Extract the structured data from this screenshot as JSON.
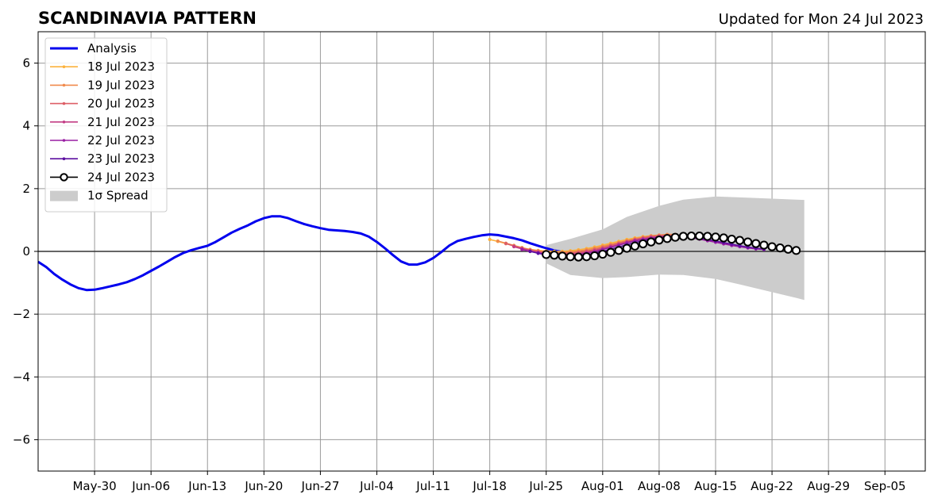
{
  "chart_data": {
    "type": "line",
    "title": "SCANDINAVIA PATTERN",
    "subtitle": "Updated for Mon 24 Jul 2023",
    "xlabel": "",
    "ylabel": "",
    "xlim": [
      "2023-05-23",
      "2023-09-10"
    ],
    "ylim": [
      -7,
      7
    ],
    "x_ticks": [
      {
        "date": "2023-05-30",
        "label": "May-30"
      },
      {
        "date": "2023-06-06",
        "label": "Jun-06"
      },
      {
        "date": "2023-06-13",
        "label": "Jun-13"
      },
      {
        "date": "2023-06-20",
        "label": "Jun-20"
      },
      {
        "date": "2023-06-27",
        "label": "Jun-27"
      },
      {
        "date": "2023-07-04",
        "label": "Jul-04"
      },
      {
        "date": "2023-07-11",
        "label": "Jul-11"
      },
      {
        "date": "2023-07-18",
        "label": "Jul-18"
      },
      {
        "date": "2023-07-25",
        "label": "Jul-25"
      },
      {
        "date": "2023-08-01",
        "label": "Aug-01"
      },
      {
        "date": "2023-08-08",
        "label": "Aug-08"
      },
      {
        "date": "2023-08-15",
        "label": "Aug-15"
      },
      {
        "date": "2023-08-22",
        "label": "Aug-22"
      },
      {
        "date": "2023-08-29",
        "label": "Aug-29"
      },
      {
        "date": "2023-09-05",
        "label": "Sep-05"
      }
    ],
    "y_ticks": [
      {
        "value": 6,
        "label": "6"
      },
      {
        "value": 4,
        "label": "4"
      },
      {
        "value": 2,
        "label": "2"
      },
      {
        "value": 0,
        "label": "0"
      },
      {
        "value": -2,
        "label": "−2"
      },
      {
        "value": -4,
        "label": "−4"
      },
      {
        "value": -6,
        "label": "−6"
      }
    ],
    "grid": true,
    "zero_line": true,
    "legend_position": "top-left",
    "legend": [
      {
        "label": "Analysis",
        "style": "thick-line",
        "color": "#0000ee"
      },
      {
        "label": "18 Jul 2023",
        "style": "line-dot",
        "color": "#fcb23c"
      },
      {
        "label": "19 Jul 2023",
        "style": "line-dot",
        "color": "#f08a4c"
      },
      {
        "label": "20 Jul 2023",
        "style": "line-dot",
        "color": "#dd5e66"
      },
      {
        "label": "21 Jul 2023",
        "style": "line-dot",
        "color": "#c23c85"
      },
      {
        "label": "22 Jul 2023",
        "style": "line-dot",
        "color": "#9a1fa3"
      },
      {
        "label": "23 Jul 2023",
        "style": "line-dot",
        "color": "#5c0fa0"
      },
      {
        "label": "24 Jul 2023",
        "style": "line-circle",
        "color": "#000000"
      },
      {
        "label": "1σ Spread",
        "style": "patch",
        "color": "#cccccc"
      }
    ],
    "analysis": {
      "start": "2023-05-23",
      "color": "#0000ee",
      "values": [
        -0.33,
        -0.5,
        -0.72,
        -0.9,
        -1.05,
        -1.17,
        -1.23,
        -1.22,
        -1.17,
        -1.11,
        -1.05,
        -0.98,
        -0.88,
        -0.76,
        -0.62,
        -0.48,
        -0.33,
        -0.18,
        -0.05,
        0.04,
        0.11,
        0.18,
        0.3,
        0.45,
        0.6,
        0.72,
        0.83,
        0.96,
        1.06,
        1.12,
        1.12,
        1.06,
        0.96,
        0.87,
        0.8,
        0.74,
        0.69,
        0.67,
        0.65,
        0.62,
        0.57,
        0.47,
        0.3,
        0.1,
        -0.12,
        -0.32,
        -0.42,
        -0.42,
        -0.35,
        -0.21,
        -0.02,
        0.19,
        0.33,
        0.4,
        0.46,
        0.51,
        0.54,
        0.52,
        0.47,
        0.42,
        0.35,
        0.26,
        0.18,
        0.1,
        0.03,
        -0.02
      ]
    },
    "forecasts": [
      {
        "name": "18 Jul 2023",
        "color": "#fcb23c",
        "start": "2023-07-18",
        "values": [
          0.38,
          0.32,
          0.25,
          0.18,
          0.11,
          0.06,
          0.03,
          0.01,
          0.0,
          0.0,
          0.02,
          0.05,
          0.09,
          0.14,
          0.2,
          0.26,
          0.32,
          0.38,
          0.43,
          0.47,
          0.5,
          0.52,
          0.53
        ]
      },
      {
        "name": "19 Jul 2023",
        "color": "#f08a4c",
        "start": "2023-07-19",
        "values": [
          0.33,
          0.26,
          0.19,
          0.12,
          0.06,
          0.02,
          -0.01,
          -0.03,
          -0.03,
          -0.02,
          0.01,
          0.05,
          0.1,
          0.16,
          0.22,
          0.28,
          0.34,
          0.4,
          0.45,
          0.49,
          0.52,
          0.54,
          0.54
        ]
      },
      {
        "name": "20 Jul 2023",
        "color": "#dd5e66",
        "start": "2023-07-20",
        "values": [
          0.25,
          0.17,
          0.1,
          0.04,
          -0.01,
          -0.04,
          -0.06,
          -0.06,
          -0.05,
          -0.03,
          0.01,
          0.06,
          0.12,
          0.19,
          0.26,
          0.32,
          0.38,
          0.43,
          0.47,
          0.5,
          0.51,
          0.5,
          0.48,
          0.44,
          0.4,
          0.35,
          0.3,
          0.25,
          0.2,
          0.16,
          0.13,
          0.1,
          0.08
        ]
      },
      {
        "name": "21 Jul 2023",
        "color": "#c23c85",
        "start": "2023-07-21",
        "values": [
          0.15,
          0.08,
          0.02,
          -0.03,
          -0.07,
          -0.09,
          -0.1,
          -0.09,
          -0.07,
          -0.03,
          0.02,
          0.08,
          0.15,
          0.22,
          0.29,
          0.35,
          0.4,
          0.44,
          0.47,
          0.49,
          0.49,
          0.47,
          0.44,
          0.4,
          0.35,
          0.3,
          0.25,
          0.2,
          0.16,
          0.12,
          0.09,
          0.07
        ]
      },
      {
        "name": "22 Jul 2023",
        "color": "#9a1fa3",
        "start": "2023-07-22",
        "values": [
          0.06,
          0.0,
          -0.05,
          -0.1,
          -0.13,
          -0.14,
          -0.13,
          -0.1,
          -0.06,
          -0.01,
          0.06,
          0.13,
          0.2,
          0.27,
          0.33,
          0.38,
          0.42,
          0.45,
          0.47,
          0.47,
          0.46,
          0.43,
          0.39,
          0.34,
          0.29,
          0.24,
          0.19,
          0.15,
          0.11,
          0.08,
          0.06
        ]
      },
      {
        "name": "23 Jul 2023",
        "color": "#5c0fa0",
        "start": "2023-07-23",
        "values": [
          0.0,
          -0.06,
          -0.11,
          -0.15,
          -0.17,
          -0.17,
          -0.15,
          -0.11,
          -0.06,
          0.0,
          0.07,
          0.14,
          0.21,
          0.28,
          0.34,
          0.39,
          0.43,
          0.46,
          0.47,
          0.47,
          0.45,
          0.42,
          0.38,
          0.33,
          0.28,
          0.23,
          0.18,
          0.14,
          0.1,
          0.07
        ]
      }
    ],
    "current_forecast": {
      "name": "24 Jul 2023",
      "color": "#000000",
      "start": "2023-07-25",
      "values": [
        -0.1,
        -0.12,
        -0.15,
        -0.17,
        -0.18,
        -0.17,
        -0.14,
        -0.09,
        -0.03,
        0.03,
        0.1,
        0.17,
        0.24,
        0.3,
        0.36,
        0.41,
        0.45,
        0.48,
        0.49,
        0.49,
        0.48,
        0.46,
        0.43,
        0.39,
        0.35,
        0.3,
        0.25,
        0.2,
        0.15,
        0.11,
        0.07,
        0.03
      ]
    },
    "spread": {
      "label": "1σ Spread",
      "color": "#cccccc",
      "dates": [
        "2023-07-25",
        "2023-07-28",
        "2023-08-01",
        "2023-08-04",
        "2023-08-08",
        "2023-08-11",
        "2023-08-15",
        "2023-08-18",
        "2023-08-22",
        "2023-08-25",
        "2023-08-26"
      ],
      "upper": [
        0.2,
        0.4,
        0.7,
        1.1,
        1.45,
        1.65,
        1.75,
        1.72,
        1.68,
        1.65,
        1.64
      ],
      "lower": [
        -0.38,
        -0.75,
        -0.85,
        -0.82,
        -0.74,
        -0.75,
        -0.88,
        -1.05,
        -1.3,
        -1.48,
        -1.55
      ]
    }
  }
}
